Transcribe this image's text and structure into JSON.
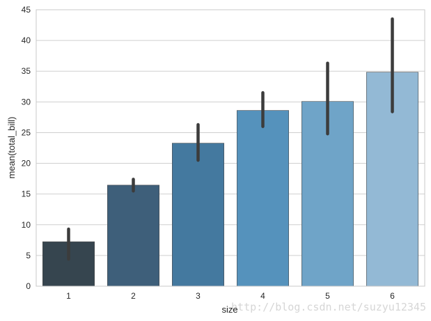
{
  "chart_data": {
    "type": "bar",
    "title": "",
    "xlabel": "size",
    "ylabel": "mean(total_bill)",
    "categories": [
      "1",
      "2",
      "3",
      "4",
      "5",
      "6"
    ],
    "values": [
      7.24,
      16.45,
      23.28,
      28.61,
      30.07,
      34.83
    ],
    "error_low": [
      4.4,
      15.5,
      20.5,
      26.0,
      24.8,
      28.4
    ],
    "error_high": [
      9.3,
      17.4,
      26.3,
      31.5,
      36.3,
      43.5
    ],
    "ylim": [
      0,
      45
    ],
    "yticks": [
      0,
      5,
      10,
      15,
      20,
      25,
      30,
      35,
      40,
      45
    ],
    "grid": "horizontal",
    "bar_colors": [
      "#36454f",
      "#3e5f7a",
      "#44799f",
      "#5592bc",
      "#6fa4c8",
      "#93b9d5"
    ],
    "error_color": "#3c3c3c"
  },
  "watermark": "http://blog.csdn.net/suzyu12345"
}
